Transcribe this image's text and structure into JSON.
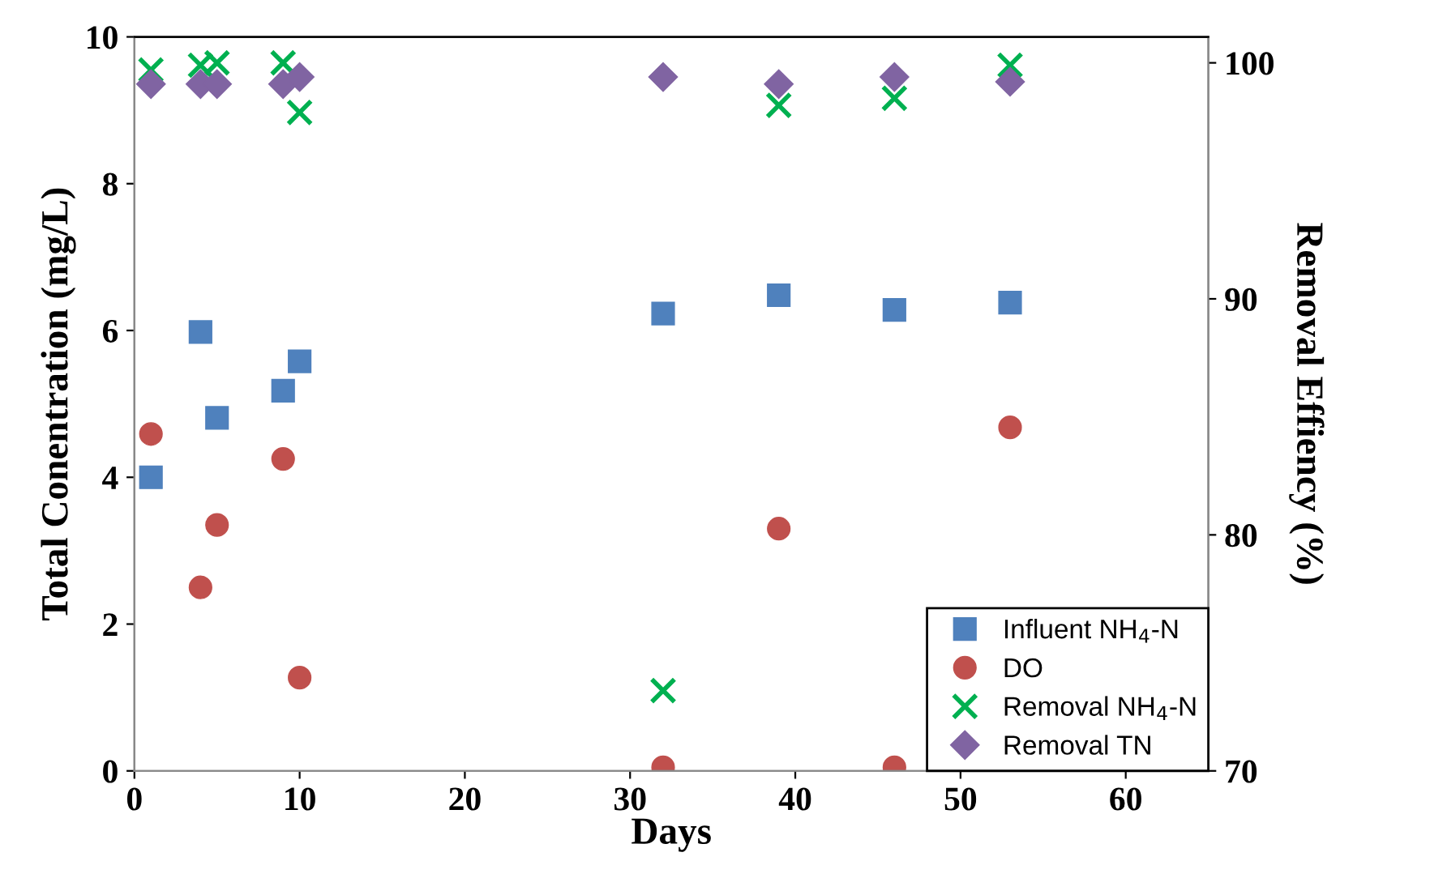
{
  "chart_data": {
    "type": "scatter",
    "xlabel": "Days",
    "ylabel": "Total Conentration (mg/L)",
    "y2label": "Removal Effiency (%)",
    "xlim": [
      0,
      65
    ],
    "xticks": [
      0,
      10,
      20,
      30,
      40,
      50,
      60
    ],
    "ylim": [
      0,
      10
    ],
    "yticks": [
      0,
      2,
      4,
      6,
      8,
      10
    ],
    "y2lim": [
      70,
      101.1
    ],
    "y2ticks": [
      70,
      80,
      90,
      100
    ],
    "legend": "bottom right",
    "grid": false,
    "series": [
      {
        "name": "Influent NH$_{4}$-N",
        "color": "#4f81bd",
        "marker": "square",
        "x": [
          1,
          4,
          5,
          9,
          10,
          32,
          39,
          46,
          53
        ],
        "values": [
          4.0,
          5.98,
          4.81,
          5.18,
          5.58,
          6.23,
          6.48,
          6.28,
          6.38
        ]
      },
      {
        "name": "DO",
        "color": "#c0504d",
        "marker": "circle",
        "x": [
          1,
          4,
          5,
          9,
          10,
          32,
          39,
          46,
          53
        ],
        "values": [
          4.59,
          2.5,
          3.35,
          4.25,
          1.27,
          0.05,
          3.3,
          0.05,
          4.68
        ]
      },
      {
        "name": "Removal NH$_{4}$-N",
        "color": "#00b050",
        "marker": "cross",
        "axis": "y2",
        "x": [
          1,
          4,
          5,
          9,
          10,
          32,
          39,
          46,
          53
        ],
        "values": [
          99.7,
          99.9,
          100.0,
          100.0,
          97.9,
          73.4,
          98.2,
          98.5,
          99.9
        ]
      },
      {
        "name": "Removal TN",
        "color": "#8064a2",
        "marker": "diamond",
        "axis": "y2",
        "x": [
          1,
          4,
          5,
          9,
          10,
          32,
          39,
          46,
          53
        ],
        "values": [
          99.1,
          99.1,
          99.1,
          99.1,
          99.4,
          99.4,
          99.1,
          99.4,
          99.2
        ]
      }
    ]
  }
}
